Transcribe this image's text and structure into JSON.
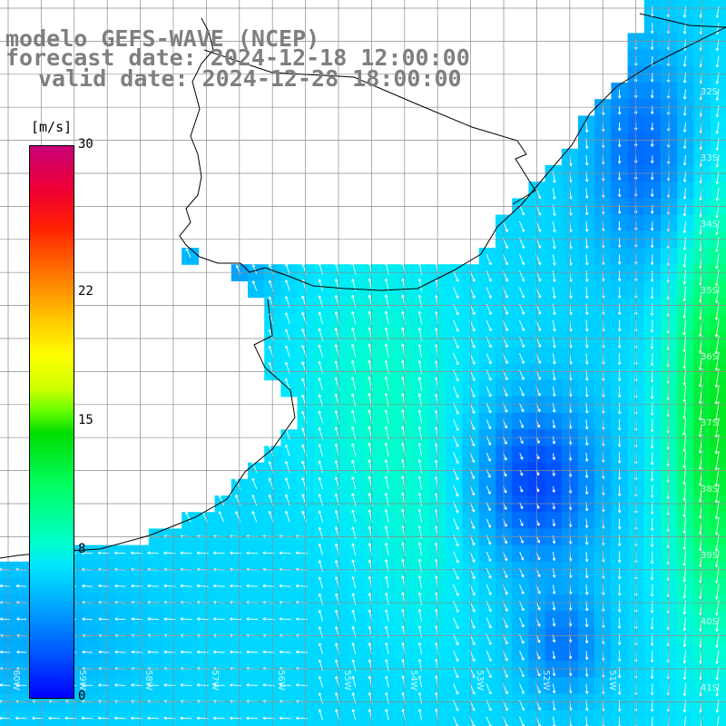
{
  "title": {
    "line1": "modelo GEFS-WAVE (NCEP)",
    "line2": "forecast date: 2024-12-18 12:00:00",
    "line3": "valid date: 2024-12-28 18:00:00"
  },
  "colorbar": {
    "units": "[m/s]",
    "min": 0,
    "max": 30,
    "ticks": [
      {
        "value": 30,
        "label": "30"
      },
      {
        "value": 22,
        "label": "22"
      },
      {
        "value": 15,
        "label": "15"
      },
      {
        "value": 8,
        "label": "8"
      },
      {
        "value": 0,
        "label": "0"
      }
    ]
  },
  "lat_labels": [
    "32S",
    "33S",
    "34S",
    "35S",
    "36S",
    "37S",
    "38S",
    "39S",
    "40S",
    "41S"
  ],
  "lon_labels": [
    "60W",
    "59W",
    "58W",
    "57W",
    "56W",
    "55W",
    "54W",
    "53W",
    "52W",
    "51W"
  ],
  "colors": {
    "land": "#ffffff",
    "coast": "#000000",
    "grid": "#8c8c8c",
    "title": "#7f7f7f",
    "arrow": "#ffffff"
  }
}
